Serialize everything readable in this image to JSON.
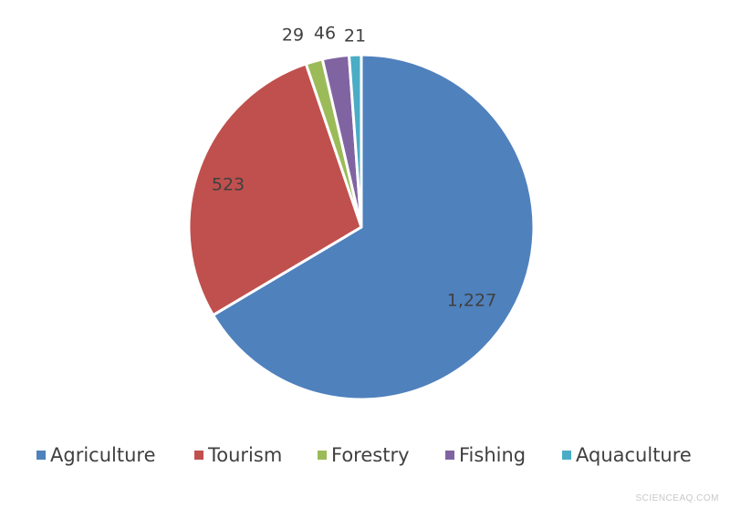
{
  "chart_data": {
    "type": "pie",
    "start_angle_deg": 0,
    "direction": "clockwise",
    "legend_position": "bottom",
    "slices": [
      {
        "label": "Agriculture",
        "value": 1227,
        "display": "1,227",
        "color": "#4f81bd"
      },
      {
        "label": "Tourism",
        "value": 523,
        "display": "523",
        "color": "#c0504d"
      },
      {
        "label": "Forestry",
        "value": 29,
        "display": "29",
        "color": "#9bbb59"
      },
      {
        "label": "Fishing",
        "value": 46,
        "display": "46",
        "color": "#8064a2"
      },
      {
        "label": "Aquaculture",
        "value": 21,
        "display": "21",
        "color": "#4bacc6"
      }
    ]
  },
  "watermark": "SCIENCEAQ.COM"
}
